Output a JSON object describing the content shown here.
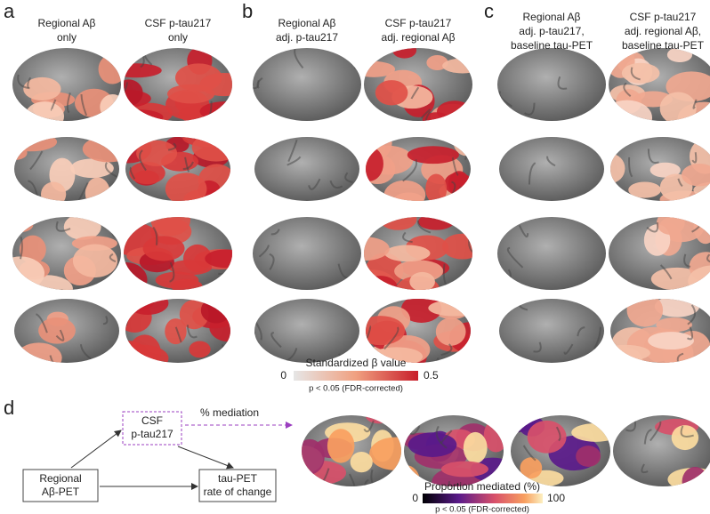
{
  "panels": [
    {
      "letter": "a",
      "columns": [
        [
          "Regional Aβ",
          "only"
        ],
        [
          "CSF p-tau217",
          "only"
        ]
      ]
    },
    {
      "letter": "b",
      "columns": [
        [
          "Regional Aβ",
          "adj. p-tau217"
        ],
        [
          "CSF p-tau217",
          "adj. regional Aβ"
        ]
      ]
    },
    {
      "letter": "c",
      "columns": [
        [
          "Regional Aβ",
          "adj. p-tau217,",
          "baseline tau-PET"
        ],
        [
          "CSF p-tau217",
          "adj. regional Aβ,",
          "baseline tau-PET"
        ]
      ]
    }
  ],
  "colorbar_beta": {
    "title": "Standardized β value",
    "min_label": "0",
    "max_label": "0.5",
    "note": "p < 0.05 (FDR-corrected)"
  },
  "panel_d": {
    "letter": "d",
    "nodes": [
      [
        "CSF",
        "p-tau217"
      ],
      [
        "Regional",
        "Aβ-PET"
      ],
      [
        "tau-PET",
        "rate of change"
      ]
    ],
    "edge_label": "% mediation",
    "colorbar": {
      "title": "Proportion mediated (%)",
      "min_label": "0",
      "max_label": "100",
      "note": "p < 0.05 (FDR-corrected)"
    }
  }
}
